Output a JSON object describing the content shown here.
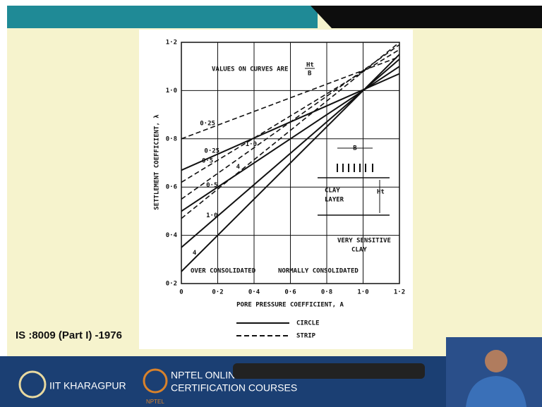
{
  "slide": {
    "reference": "IS :8009 (Part I) -1976",
    "institute": "IIT KHARAGPUR",
    "course_line1": "NPTEL ONLINE",
    "course_line2": "CERTIFICATION COURSES",
    "logo_text": "NPTEL"
  },
  "chart_data": {
    "type": "line",
    "note": "VALUES ON CURVES ARE",
    "note_fraction_top": "Ht",
    "note_fraction_bottom": "B",
    "xlabel": "PORE PRESSURE COEFFICIENT, A",
    "ylabel": "SETTLEMENT COEFFICIENT, λ",
    "x": [
      0,
      1.2
    ],
    "xlim": [
      0,
      1.2
    ],
    "xticks": [
      0,
      {
        "value": 0.2,
        "label": "0·2"
      },
      {
        "value": 0.4,
        "label": "0·4"
      },
      {
        "value": 0.6,
        "label": "0·6"
      },
      {
        "value": 0.8,
        "label": "0·8"
      },
      {
        "value": 1.0,
        "label": "1·0"
      },
      {
        "value": 1.2,
        "label": "1·2"
      }
    ],
    "ylim": [
      0.2,
      1.2
    ],
    "yticks": [
      {
        "value": 0.2,
        "label": "0·2"
      },
      {
        "value": 0.4,
        "label": "0·4"
      },
      {
        "value": 0.6,
        "label": "0·6"
      },
      {
        "value": 0.8,
        "label": "0·8"
      },
      {
        "value": 1.0,
        "label": "1·0"
      },
      {
        "value": 1.2,
        "label": "1·2"
      }
    ],
    "grid": true,
    "series": [
      {
        "name": "0·25",
        "dash": false,
        "color": "#111111",
        "values": [
          0.67,
          1.07
        ]
      },
      {
        "name": "0·5",
        "dash": false,
        "color": "#111111",
        "values": [
          0.5,
          1.1
        ]
      },
      {
        "name": "1·0",
        "dash": false,
        "color": "#111111",
        "values": [
          0.35,
          1.13
        ]
      },
      {
        "name": "4",
        "dash": false,
        "color": "#111111",
        "values": [
          0.25,
          1.15
        ]
      },
      {
        "name": "0·25",
        "dash": true,
        "color": "#111111",
        "values": [
          0.8,
          1.14
        ]
      },
      {
        "name": "0·5",
        "dash": true,
        "color": "#111111",
        "values": [
          0.62,
          1.17
        ]
      },
      {
        "name": "1·0",
        "dash": true,
        "color": "#111111",
        "values": [
          0.55,
          1.19
        ]
      },
      {
        "name": "4",
        "dash": true,
        "color": "#111111",
        "values": [
          0.47,
          1.2
        ]
      }
    ],
    "legend": [
      {
        "label": "CIRCLE",
        "dash": false
      },
      {
        "label": "STRIP",
        "dash": true
      }
    ],
    "inset": {
      "width_label": "B",
      "layer_label_1": "CLAY",
      "layer_label_2": "LAYER",
      "thickness_label": "Ht"
    },
    "annotations": {
      "sensitive_1": "VERY SENSITIVE",
      "sensitive_2": "CLAY",
      "over": "OVER CONSOLIDATED",
      "normal": "NORMALLY CONSOLIDATED"
    }
  }
}
